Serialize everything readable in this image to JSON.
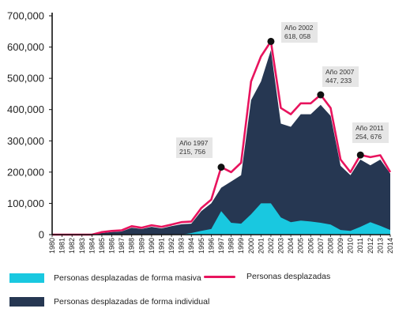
{
  "colors": {
    "total_area": "#263752",
    "masiva_area": "#19c8e0",
    "line": "#e8145e",
    "marker": "#111111",
    "annotation_bg": "#e6e6e6",
    "axis": "#111111"
  },
  "chart_data": {
    "type": "area",
    "x": [
      1980,
      1981,
      1982,
      1983,
      1984,
      1985,
      1986,
      1987,
      1988,
      1989,
      1990,
      1991,
      1992,
      1993,
      1994,
      1995,
      1996,
      1997,
      1998,
      1999,
      2000,
      2001,
      2002,
      2003,
      2004,
      2005,
      2006,
      2007,
      2008,
      2009,
      2010,
      2011,
      2012,
      2013,
      2014
    ],
    "x_tick_labels": [
      "1980",
      "1981",
      "1982",
      "1983",
      "1984",
      "1985",
      "1986",
      "1987",
      "1988",
      "1989",
      "1990",
      "1991",
      "1992",
      "1993",
      "1994",
      "1995",
      "1996",
      "1997",
      "1998",
      "1999",
      "2000",
      "2001",
      "2002",
      "2003",
      "2004",
      "2005",
      "2006",
      "2007",
      "2008",
      "2009",
      "2010",
      "2011",
      "2012",
      "2013",
      "2014"
    ],
    "y_tick_values": [
      0,
      100000,
      200000,
      300000,
      400000,
      500000,
      600000,
      700000
    ],
    "y_tick_labels": [
      "0",
      "100,000",
      "200,000",
      "300,000",
      "400,000",
      "500,000",
      "600,000",
      "700,000"
    ],
    "ylim": [
      0,
      700000
    ],
    "xlim": [
      1980,
      2014
    ],
    "series": [
      {
        "name": "Personas desplazadas",
        "kind": "line",
        "values": [
          0,
          0,
          0,
          0,
          0,
          8000,
          12000,
          14000,
          27000,
          22000,
          30000,
          25000,
          32000,
          40000,
          42000,
          85000,
          112000,
          215756,
          200000,
          230000,
          490000,
          570000,
          618058,
          405000,
          385000,
          420000,
          420000,
          447233,
          405000,
          240000,
          200000,
          254676,
          248000,
          254000,
          200000
        ]
      },
      {
        "name": "Personas desplazadas de forma individual",
        "kind": "area",
        "values": [
          0,
          0,
          0,
          0,
          0,
          5000,
          8000,
          10000,
          22000,
          18000,
          25000,
          20000,
          27000,
          33000,
          35000,
          75000,
          100000,
          150000,
          170000,
          190000,
          430000,
          490000,
          590000,
          355000,
          345000,
          385000,
          385000,
          415000,
          380000,
          220000,
          190000,
          240000,
          222000,
          240000,
          195000
        ]
      },
      {
        "name": "Personas desplazadas de forma masiva",
        "kind": "area",
        "values": [
          0,
          0,
          0,
          0,
          0,
          0,
          0,
          0,
          0,
          0,
          0,
          0,
          0,
          0,
          5000,
          12000,
          18000,
          75000,
          38000,
          35000,
          65000,
          100000,
          100000,
          55000,
          40000,
          45000,
          42000,
          38000,
          32000,
          15000,
          12000,
          25000,
          40000,
          28000,
          15000
        ]
      }
    ],
    "annotations": [
      {
        "year": 1997,
        "value": 215756,
        "line1": "Año 1997",
        "line2": "215, 756"
      },
      {
        "year": 2002,
        "value": 618058,
        "line1": "Año 2002",
        "line2": "618, 058"
      },
      {
        "year": 2007,
        "value": 447233,
        "line1": "Año 2007",
        "line2": "447, 233"
      },
      {
        "year": 2011,
        "value": 254676,
        "line1": "Año 2011",
        "line2": "254, 676"
      }
    ],
    "legend": {
      "masiva": "Personas desplazadas de forma masiva",
      "individual": "Personas desplazadas de forma individual",
      "line": "Personas desplazadas"
    }
  }
}
